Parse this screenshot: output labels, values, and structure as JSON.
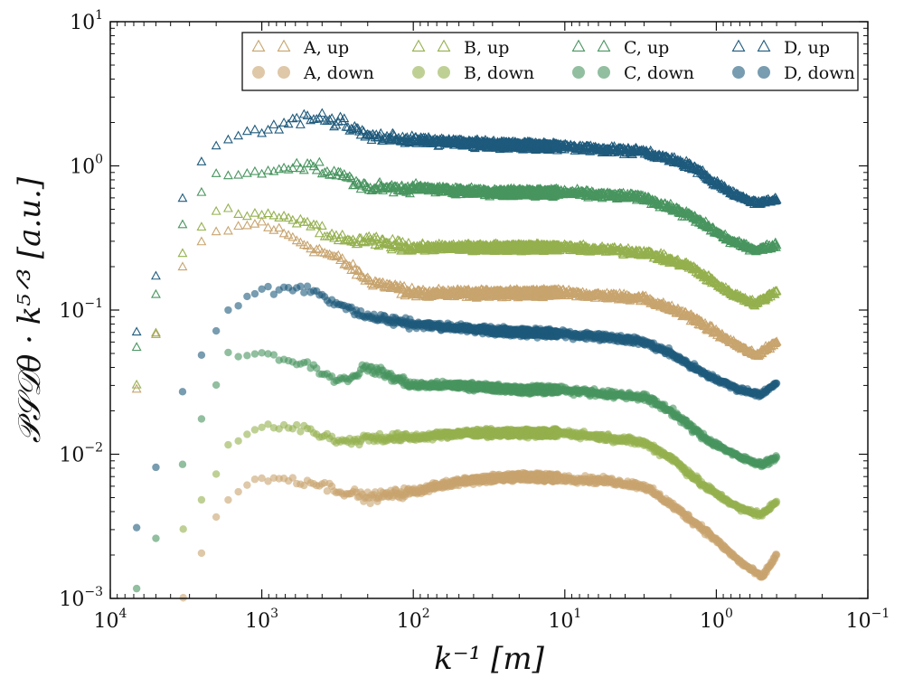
{
  "chart_data": {
    "type": "scatter",
    "xscale": "log",
    "yscale": "log",
    "x_reversed": true,
    "xlim": [
      10000,
      0.1
    ],
    "ylim": [
      0.001,
      10
    ],
    "xlabel": "k⁻¹ [m]",
    "ylabel": "𝒫𝒮𝒟θ · k⁵ᐟ³ [a.u.]",
    "x_ticks": [
      {
        "base": "10",
        "exp": "4",
        "value": 10000
      },
      {
        "base": "10",
        "exp": "3",
        "value": 1000
      },
      {
        "base": "10",
        "exp": "2",
        "value": 100
      },
      {
        "base": "10",
        "exp": "1",
        "value": 10
      },
      {
        "base": "10",
        "exp": "0",
        "value": 1
      },
      {
        "base": "10",
        "exp": "−1",
        "value": 0.1
      }
    ],
    "y_ticks": [
      {
        "base": "10",
        "exp": "−3",
        "value": 0.001
      },
      {
        "base": "10",
        "exp": "−2",
        "value": 0.01
      },
      {
        "base": "10",
        "exp": "−1",
        "value": 0.1
      },
      {
        "base": "10",
        "exp": "0",
        "value": 1
      },
      {
        "base": "10",
        "exp": "1",
        "value": 10
      }
    ],
    "grid": false,
    "legend_position": "top-right",
    "series": [
      {
        "name": "A, up",
        "marker": "triangle-open",
        "color": "#c8a46e",
        "points": [
          [
            6700,
            0.028
          ],
          [
            3300,
            0.2
          ],
          [
            2200,
            0.34
          ],
          [
            1650,
            0.36
          ],
          [
            1000,
            0.4
          ],
          [
            500,
            0.28
          ],
          [
            300,
            0.22
          ],
          [
            200,
            0.16
          ],
          [
            100,
            0.13
          ],
          [
            30,
            0.13
          ],
          [
            10,
            0.13
          ],
          [
            3,
            0.12
          ],
          [
            1.5,
            0.09
          ],
          [
            0.8,
            0.06
          ],
          [
            0.55,
            0.048
          ],
          [
            0.4,
            0.06
          ]
        ]
      },
      {
        "name": "A, down",
        "marker": "circle",
        "color": "#c8a46e",
        "points": [
          [
            3300,
            0.001
          ],
          [
            2200,
            0.0029
          ],
          [
            1650,
            0.005
          ],
          [
            1000,
            0.007
          ],
          [
            500,
            0.0065
          ],
          [
            300,
            0.0056
          ],
          [
            200,
            0.005
          ],
          [
            100,
            0.0055
          ],
          [
            50,
            0.0065
          ],
          [
            20,
            0.007
          ],
          [
            10,
            0.0068
          ],
          [
            5,
            0.0065
          ],
          [
            3,
            0.006
          ],
          [
            2,
            0.0045
          ],
          [
            1.2,
            0.003
          ],
          [
            0.7,
            0.0018
          ],
          [
            0.5,
            0.0014
          ],
          [
            0.4,
            0.002
          ]
        ]
      },
      {
        "name": "B, up",
        "marker": "triangle-open",
        "color": "#94b04e",
        "points": [
          [
            6700,
            0.03
          ],
          [
            3300,
            0.25
          ],
          [
            2200,
            0.47
          ],
          [
            1650,
            0.48
          ],
          [
            1000,
            0.45
          ],
          [
            500,
            0.4
          ],
          [
            300,
            0.3
          ],
          [
            200,
            0.3
          ],
          [
            100,
            0.27
          ],
          [
            30,
            0.27
          ],
          [
            10,
            0.27
          ],
          [
            3,
            0.25
          ],
          [
            1.5,
            0.2
          ],
          [
            0.8,
            0.13
          ],
          [
            0.55,
            0.11
          ],
          [
            0.4,
            0.135
          ]
        ]
      },
      {
        "name": "B, down",
        "marker": "circle",
        "color": "#94b04e",
        "points": [
          [
            3300,
            0.0031
          ],
          [
            2200,
            0.0055
          ],
          [
            1650,
            0.012
          ],
          [
            1000,
            0.016
          ],
          [
            500,
            0.015
          ],
          [
            300,
            0.012
          ],
          [
            200,
            0.013
          ],
          [
            100,
            0.013
          ],
          [
            50,
            0.014
          ],
          [
            20,
            0.014
          ],
          [
            10,
            0.014
          ],
          [
            5,
            0.013
          ],
          [
            3,
            0.012
          ],
          [
            2,
            0.0095
          ],
          [
            1.2,
            0.006
          ],
          [
            0.7,
            0.0042
          ],
          [
            0.5,
            0.0038
          ],
          [
            0.4,
            0.0047
          ]
        ]
      },
      {
        "name": "C, up",
        "marker": "triangle-open",
        "color": "#48955f",
        "points": [
          [
            6700,
            0.055
          ],
          [
            3300,
            0.42
          ],
          [
            2200,
            0.88
          ],
          [
            1650,
            0.88
          ],
          [
            1000,
            0.92
          ],
          [
            500,
            1.0
          ],
          [
            300,
            0.85
          ],
          [
            200,
            0.7
          ],
          [
            100,
            0.7
          ],
          [
            30,
            0.65
          ],
          [
            10,
            0.65
          ],
          [
            3,
            0.6
          ],
          [
            1.5,
            0.45
          ],
          [
            0.8,
            0.3
          ],
          [
            0.55,
            0.26
          ],
          [
            0.4,
            0.28
          ]
        ]
      },
      {
        "name": "C, down",
        "marker": "circle",
        "color": "#48955f",
        "points": [
          [
            6700,
            0.0012
          ],
          [
            3300,
            0.0092
          ],
          [
            2200,
            0.023
          ],
          [
            1650,
            0.05
          ],
          [
            1000,
            0.05
          ],
          [
            500,
            0.042
          ],
          [
            300,
            0.032
          ],
          [
            200,
            0.04
          ],
          [
            100,
            0.03
          ],
          [
            50,
            0.03
          ],
          [
            20,
            0.028
          ],
          [
            10,
            0.028
          ],
          [
            5,
            0.026
          ],
          [
            3,
            0.025
          ],
          [
            2,
            0.02
          ],
          [
            1.2,
            0.013
          ],
          [
            0.7,
            0.0095
          ],
          [
            0.5,
            0.0085
          ],
          [
            0.4,
            0.0095
          ]
        ]
      },
      {
        "name": "D, up",
        "marker": "triangle-open",
        "color": "#1e5a7c",
        "points": [
          [
            6700,
            0.073
          ],
          [
            3300,
            0.62
          ],
          [
            2200,
            1.35
          ],
          [
            1650,
            1.5
          ],
          [
            1000,
            1.7
          ],
          [
            500,
            2.2
          ],
          [
            300,
            2.0
          ],
          [
            200,
            1.6
          ],
          [
            100,
            1.5
          ],
          [
            30,
            1.4
          ],
          [
            10,
            1.35
          ],
          [
            3,
            1.25
          ],
          [
            1.5,
            1.0
          ],
          [
            0.8,
            0.65
          ],
          [
            0.55,
            0.55
          ],
          [
            0.4,
            0.58
          ]
        ]
      },
      {
        "name": "D, down",
        "marker": "circle",
        "color": "#1e5a7c",
        "points": [
          [
            6700,
            0.0032
          ],
          [
            3300,
            0.027
          ],
          [
            2200,
            0.065
          ],
          [
            1650,
            0.1
          ],
          [
            1000,
            0.14
          ],
          [
            500,
            0.14
          ],
          [
            300,
            0.11
          ],
          [
            200,
            0.09
          ],
          [
            100,
            0.08
          ],
          [
            50,
            0.075
          ],
          [
            20,
            0.07
          ],
          [
            10,
            0.068
          ],
          [
            5,
            0.065
          ],
          [
            3,
            0.06
          ],
          [
            2,
            0.05
          ],
          [
            1.2,
            0.036
          ],
          [
            0.7,
            0.028
          ],
          [
            0.5,
            0.026
          ],
          [
            0.4,
            0.031
          ]
        ]
      }
    ]
  }
}
